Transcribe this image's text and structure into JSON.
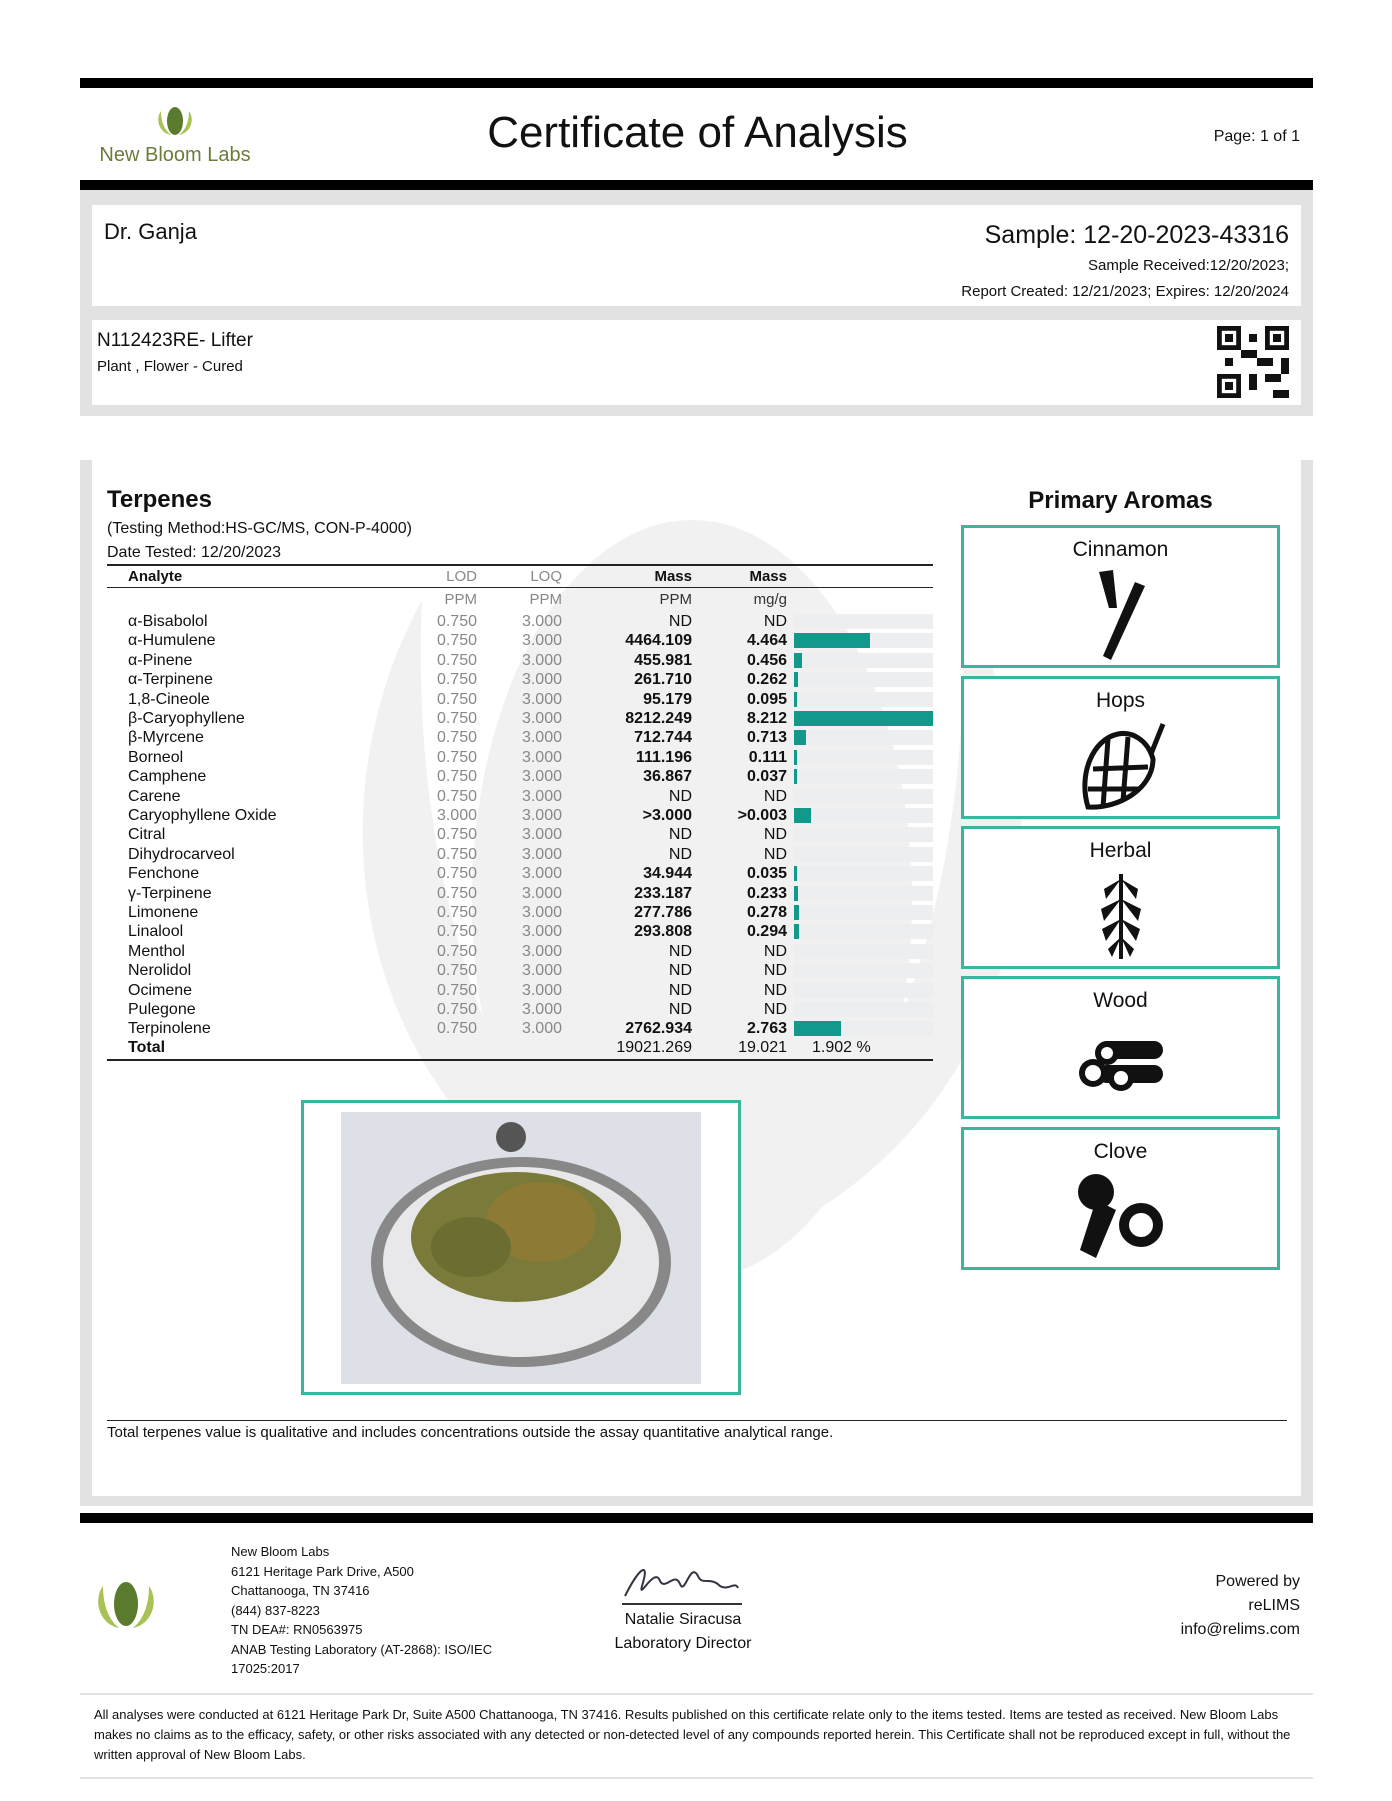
{
  "header": {
    "logo_text": "New Bloom Labs",
    "title": "Certificate of Analysis",
    "page": "Page: 1 of 1"
  },
  "client": {
    "name": "Dr. Ganja",
    "sample": "Sample: 12-20-2023-43316",
    "received": "Sample Received:12/20/2023;",
    "report": "Report Created: 12/21/2023; Expires: 12/20/2024"
  },
  "product": {
    "name": "N112423RE- Lifter",
    "type": "Plant , Flower - Cured"
  },
  "terpenes": {
    "title": "Terpenes",
    "method": "(Testing Method:HS-GC/MS, CON-P-4000)",
    "date": "Date Tested: 12/20/2023",
    "columns": [
      "Analyte",
      "LOD",
      "LOQ",
      "Mass",
      "Mass"
    ],
    "units": [
      "",
      "PPM",
      "PPM",
      "PPM",
      "mg/g"
    ],
    "bar_color": "#12998c",
    "rows": [
      {
        "name": "α-Bisabolol",
        "lod": "0.750",
        "loq": "3.000",
        "ppm": "ND",
        "mg": "ND",
        "bar": 0
      },
      {
        "name": "α-Humulene",
        "lod": "0.750",
        "loq": "3.000",
        "ppm": "4464.109",
        "mg": "4.464",
        "bar": 0.544
      },
      {
        "name": "α-Pinene",
        "lod": "0.750",
        "loq": "3.000",
        "ppm": "455.981",
        "mg": "0.456",
        "bar": 0.056
      },
      {
        "name": "α-Terpinene",
        "lod": "0.750",
        "loq": "3.000",
        "ppm": "261.710",
        "mg": "0.262",
        "bar": 0.032
      },
      {
        "name": "1,8-Cineole",
        "lod": "0.750",
        "loq": "3.000",
        "ppm": "95.179",
        "mg": "0.095",
        "bar": 0.012
      },
      {
        "name": "β-Caryophyllene",
        "lod": "0.750",
        "loq": "3.000",
        "ppm": "8212.249",
        "mg": "8.212",
        "bar": 1
      },
      {
        "name": "β-Myrcene",
        "lod": "0.750",
        "loq": "3.000",
        "ppm": "712.744",
        "mg": "0.713",
        "bar": 0.087
      },
      {
        "name": "Borneol",
        "lod": "0.750",
        "loq": "3.000",
        "ppm": "111.196",
        "mg": "0.111",
        "bar": 0.014
      },
      {
        "name": "Camphene",
        "lod": "0.750",
        "loq": "3.000",
        "ppm": "36.867",
        "mg": "0.037",
        "bar": 0.005
      },
      {
        "name": "Carene",
        "lod": "0.750",
        "loq": "3.000",
        "ppm": "ND",
        "mg": "ND",
        "bar": 0
      },
      {
        "name": "Caryophyllene Oxide",
        "lod": "3.000",
        "loq": "3.000",
        "ppm": ">3.000",
        "mg": ">0.003",
        "bar": 0.12
      },
      {
        "name": "Citral",
        "lod": "0.750",
        "loq": "3.000",
        "ppm": "ND",
        "mg": "ND",
        "bar": 0
      },
      {
        "name": "Dihydrocarveol",
        "lod": "0.750",
        "loq": "3.000",
        "ppm": "ND",
        "mg": "ND",
        "bar": 0
      },
      {
        "name": "Fenchone",
        "lod": "0.750",
        "loq": "3.000",
        "ppm": "34.944",
        "mg": "0.035",
        "bar": 0.004
      },
      {
        "name": "γ-Terpinene",
        "lod": "0.750",
        "loq": "3.000",
        "ppm": "233.187",
        "mg": "0.233",
        "bar": 0.028
      },
      {
        "name": "Limonene",
        "lod": "0.750",
        "loq": "3.000",
        "ppm": "277.786",
        "mg": "0.278",
        "bar": 0.034
      },
      {
        "name": "Linalool",
        "lod": "0.750",
        "loq": "3.000",
        "ppm": "293.808",
        "mg": "0.294",
        "bar": 0.036
      },
      {
        "name": "Menthol",
        "lod": "0.750",
        "loq": "3.000",
        "ppm": "ND",
        "mg": "ND",
        "bar": 0
      },
      {
        "name": "Nerolidol",
        "lod": "0.750",
        "loq": "3.000",
        "ppm": "ND",
        "mg": "ND",
        "bar": 0
      },
      {
        "name": "Ocimene",
        "lod": "0.750",
        "loq": "3.000",
        "ppm": "ND",
        "mg": "ND",
        "bar": 0
      },
      {
        "name": "Pulegone",
        "lod": "0.750",
        "loq": "3.000",
        "ppm": "ND",
        "mg": "ND",
        "bar": 0
      },
      {
        "name": "Terpinolene",
        "lod": "0.750",
        "loq": "3.000",
        "ppm": "2762.934",
        "mg": "2.763",
        "bar": 0.336
      }
    ],
    "total": {
      "label": "Total",
      "ppm": "19021.269",
      "mg": "19.021",
      "percent": "1.902 %"
    },
    "footnote": "Total terpenes value is qualitative and includes concentrations outside the assay quantitative analytical range."
  },
  "aromas": {
    "title": "Primary Aromas",
    "items": [
      "Cinnamon",
      "Hops",
      "Herbal",
      "Wood",
      "Clove"
    ]
  },
  "footer": {
    "address": [
      "New Bloom Labs",
      "6121 Heritage Park Drive, A500",
      "Chattanooga, TN 37416",
      "(844) 837-8223",
      "TN DEA#: RN0563975",
      "ANAB Testing Laboratory (AT-2868): ISO/IEC",
      "17025:2017"
    ],
    "signer": "Natalie Siracusa",
    "signer_title": "Laboratory Director",
    "powered": [
      "Powered by",
      "reLIMS",
      "info@relims.com"
    ],
    "disclaimer": "All analyses were conducted at 6121 Heritage Park Dr, Suite A500 Chattanooga, TN 37416. Results published on this certificate relate only to the items tested. Items are tested as received. New Bloom Labs makes no claims as to the efficacy, safety, or other risks associated with any detected or non-detected level of any compounds reported herein. This Certificate shall not be reproduced except in full, without the written approval of New Bloom Labs."
  }
}
